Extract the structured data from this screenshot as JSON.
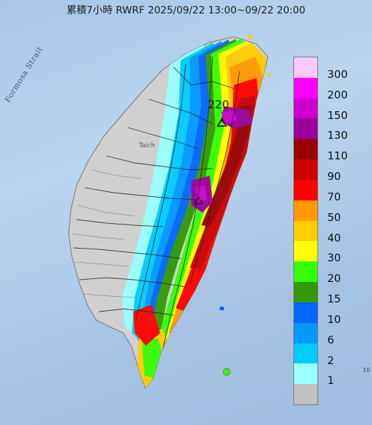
{
  "title": "累積7小時 RWRF 2025/09/22 13:00~09/22 20:00",
  "strait_label": "Formosa Strait",
  "max_value_label": "220",
  "city_label": "Taich",
  "corner_text": "10",
  "legend": {
    "items": [
      {
        "label": "300",
        "color": "#ffc8ff"
      },
      {
        "label": "200",
        "color": "#ff00ff"
      },
      {
        "label": "150",
        "color": "#cc00cc"
      },
      {
        "label": "130",
        "color": "#990099"
      },
      {
        "label": "110",
        "color": "#990000"
      },
      {
        "label": "90",
        "color": "#cc0000"
      },
      {
        "label": "70",
        "color": "#ff0000"
      },
      {
        "label": "50",
        "color": "#ff9900"
      },
      {
        "label": "40",
        "color": "#ffcc00"
      },
      {
        "label": "30",
        "color": "#ffff00"
      },
      {
        "label": "20",
        "color": "#33ff00"
      },
      {
        "label": "15",
        "color": "#339900"
      },
      {
        "label": "10",
        "color": "#0066ff"
      },
      {
        "label": "6",
        "color": "#0099ff"
      },
      {
        "label": "2",
        "color": "#00ccff"
      },
      {
        "label": "1",
        "color": "#99ffff"
      },
      {
        "label": "",
        "color": "#c0c0c0"
      }
    ]
  }
}
